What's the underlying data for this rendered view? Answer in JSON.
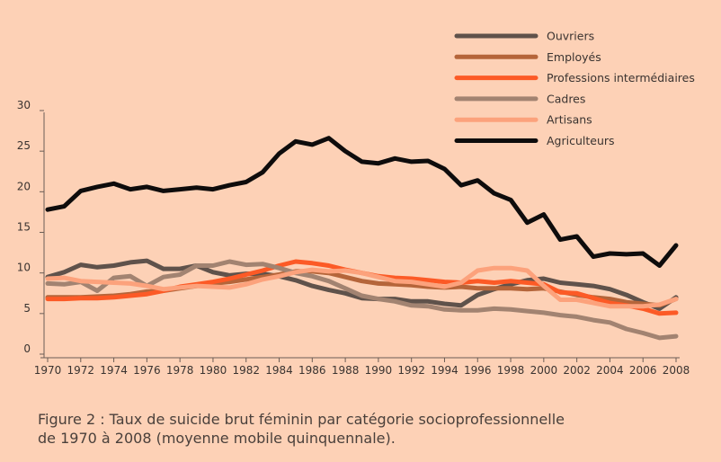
{
  "chart_data": {
    "type": "line",
    "title": "",
    "xlabel": "",
    "ylabel": "",
    "ylim": [
      0,
      30
    ],
    "yticks": [
      0,
      5,
      10,
      15,
      20,
      25,
      30
    ],
    "x": [
      1970,
      1971,
      1972,
      1973,
      1974,
      1975,
      1976,
      1977,
      1978,
      1979,
      1980,
      1981,
      1982,
      1983,
      1984,
      1985,
      1986,
      1987,
      1988,
      1989,
      1990,
      1991,
      1992,
      1993,
      1994,
      1995,
      1996,
      1997,
      1998,
      1999,
      2000,
      2001,
      2002,
      2003,
      2004,
      2005,
      2006,
      2007,
      2008
    ],
    "xticks": [
      "1970",
      "1972",
      "1974",
      "1976",
      "1978",
      "1980",
      "1982",
      "1984",
      "1986",
      "1988",
      "1990",
      "1992",
      "1994",
      "1996",
      "1998",
      "2000",
      "2002",
      "2004",
      "2006",
      "2008"
    ],
    "grid": false,
    "legend_position": "top-right",
    "series": [
      {
        "name": "Ouvriers",
        "color": "#5f524b",
        "values": [
          9.5,
          10.1,
          11.0,
          10.7,
          10.9,
          11.3,
          11.5,
          10.5,
          10.5,
          10.9,
          10.1,
          9.7,
          9.9,
          9.9,
          9.6,
          9.1,
          8.4,
          7.9,
          7.5,
          6.9,
          6.8,
          6.8,
          6.5,
          6.5,
          6.2,
          6.0,
          7.3,
          8.0,
          8.6,
          9.1,
          9.3,
          8.8,
          8.6,
          8.4,
          8.0,
          7.3,
          6.4,
          5.6,
          7.0
        ]
      },
      {
        "name": "Employés",
        "color": "#b5653a",
        "values": [
          7.0,
          7.0,
          7.0,
          7.1,
          7.2,
          7.4,
          7.7,
          7.8,
          8.1,
          8.4,
          8.7,
          8.9,
          9.2,
          9.5,
          9.8,
          10.2,
          10.2,
          10.0,
          9.5,
          9.0,
          8.7,
          8.6,
          8.5,
          8.3,
          8.2,
          8.3,
          8.1,
          8.1,
          8.1,
          8.0,
          8.1,
          7.7,
          7.3,
          7.0,
          6.8,
          6.4,
          6.2,
          6.0,
          6.8
        ]
      },
      {
        "name": "Professions intermédiaires",
        "color": "#fc5a26",
        "values": [
          6.8,
          6.8,
          6.9,
          6.9,
          7.0,
          7.2,
          7.4,
          7.8,
          8.3,
          8.6,
          8.9,
          9.3,
          9.8,
          10.3,
          10.9,
          11.4,
          11.2,
          10.9,
          10.4,
          10.0,
          9.6,
          9.4,
          9.3,
          9.1,
          8.9,
          8.8,
          9.0,
          8.8,
          9.0,
          8.8,
          8.6,
          7.6,
          7.5,
          6.9,
          6.3,
          6.0,
          5.6,
          5.0,
          5.1
        ]
      },
      {
        "name": "Cadres",
        "color": "#a28371",
        "values": [
          8.7,
          8.6,
          8.9,
          7.8,
          9.4,
          9.6,
          8.4,
          9.5,
          9.8,
          10.9,
          10.9,
          11.4,
          11.0,
          11.1,
          10.6,
          10.0,
          9.6,
          9.0,
          8.1,
          7.2,
          6.8,
          6.5,
          6.0,
          5.9,
          5.5,
          5.4,
          5.4,
          5.6,
          5.5,
          5.3,
          5.1,
          4.8,
          4.6,
          4.2,
          3.9,
          3.1,
          2.6,
          2.0,
          2.2
        ]
      },
      {
        "name": "Artisans",
        "color": "#fca27c",
        "values": [
          9.3,
          9.4,
          9.0,
          8.9,
          8.8,
          8.7,
          8.4,
          8.0,
          8.2,
          8.4,
          8.3,
          8.2,
          8.6,
          9.2,
          9.6,
          10.1,
          10.4,
          10.2,
          10.3,
          10.0,
          9.5,
          9.0,
          8.9,
          8.6,
          8.3,
          8.8,
          10.3,
          10.6,
          10.6,
          10.3,
          8.4,
          6.7,
          6.7,
          6.3,
          5.9,
          5.9,
          5.9,
          6.1,
          6.8
        ]
      },
      {
        "name": "Agriculteurs",
        "color": "#0e0c0c",
        "values": [
          17.8,
          18.2,
          20.1,
          20.6,
          21.0,
          20.3,
          20.6,
          20.1,
          20.3,
          20.5,
          20.3,
          20.8,
          21.2,
          22.4,
          24.7,
          26.2,
          25.8,
          26.6,
          25.0,
          23.7,
          23.5,
          24.1,
          23.7,
          23.8,
          22.8,
          20.8,
          21.4,
          19.8,
          19.0,
          16.2,
          17.2,
          14.1,
          14.5,
          12.0,
          12.4,
          12.3,
          12.4,
          10.9,
          13.4
        ]
      }
    ]
  },
  "caption": {
    "line1": "Figure 2 : Taux de suicide brut féminin par catégorie socioprofessionnelle",
    "line2": "de 1970 à 2008 (moyenne mobile quinquennale)."
  }
}
